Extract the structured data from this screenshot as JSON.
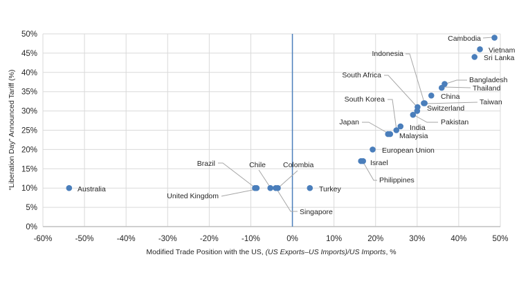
{
  "chart_data": {
    "type": "scatter",
    "xlabel": "Modified Trade Position with the US, ",
    "xlabel_italic": "(US Exports–US Imports)/US Imports",
    "xlabel_suffix": ", %",
    "ylabel": "“Liberation Day” Announced Tariff (%)",
    "xlim": [
      -60,
      50
    ],
    "ylim": [
      0,
      50
    ],
    "x_ticks": [
      "-60%",
      "-50%",
      "-40%",
      "-30%",
      "-20%",
      "-10%",
      "0%",
      "10%",
      "20%",
      "30%",
      "40%",
      "50%"
    ],
    "y_ticks": [
      "0%",
      "5%",
      "10%",
      "15%",
      "20%",
      "25%",
      "30%",
      "35%",
      "40%",
      "45%",
      "50%"
    ],
    "grid": true,
    "reference_line_x": 0,
    "colors": {
      "points": "#4a7ebb",
      "grid": "#d9d9d9",
      "ref_line": "#4a7ebb",
      "leader": "#a6a6a6"
    },
    "points": [
      {
        "name": "Cambodia",
        "x": 48.6,
        "y": 49
      },
      {
        "name": "Vietnam",
        "x": 45.1,
        "y": 46
      },
      {
        "name": "Sri Lanka",
        "x": 43.8,
        "y": 44
      },
      {
        "name": "Bangladesh",
        "x": 36.6,
        "y": 37
      },
      {
        "name": "Thailand",
        "x": 35.9,
        "y": 36
      },
      {
        "name": "China",
        "x": 33.4,
        "y": 34
      },
      {
        "name": "Taiwan",
        "x": 31.8,
        "y": 32
      },
      {
        "name": "Indonesia",
        "x": 31.6,
        "y": 32
      },
      {
        "name": "Switzerland",
        "x": 30.1,
        "y": 31
      },
      {
        "name": "South Africa",
        "x": 30.0,
        "y": 30
      },
      {
        "name": "Pakistan",
        "x": 29.0,
        "y": 29
      },
      {
        "name": "India",
        "x": 26.0,
        "y": 26
      },
      {
        "name": "South Korea",
        "x": 25.0,
        "y": 25
      },
      {
        "name": "Japan",
        "x": 23.0,
        "y": 24
      },
      {
        "name": "Malaysia",
        "x": 23.5,
        "y": 24
      },
      {
        "name": "European Union",
        "x": 19.3,
        "y": 20
      },
      {
        "name": "Israel",
        "x": 16.5,
        "y": 17
      },
      {
        "name": "Philippines",
        "x": 17.0,
        "y": 17
      },
      {
        "name": "Turkey",
        "x": 4.2,
        "y": 10
      },
      {
        "name": "Australia",
        "x": -53.7,
        "y": 10
      },
      {
        "name": "Brazil",
        "x": -9.0,
        "y": 10
      },
      {
        "name": "United Kingdom",
        "x": -8.6,
        "y": 10
      },
      {
        "name": "Chile",
        "x": -5.3,
        "y": 10
      },
      {
        "name": "Colombia",
        "x": -3.5,
        "y": 10
      },
      {
        "name": "Singapore",
        "x": -4.0,
        "y": 10
      }
    ]
  }
}
